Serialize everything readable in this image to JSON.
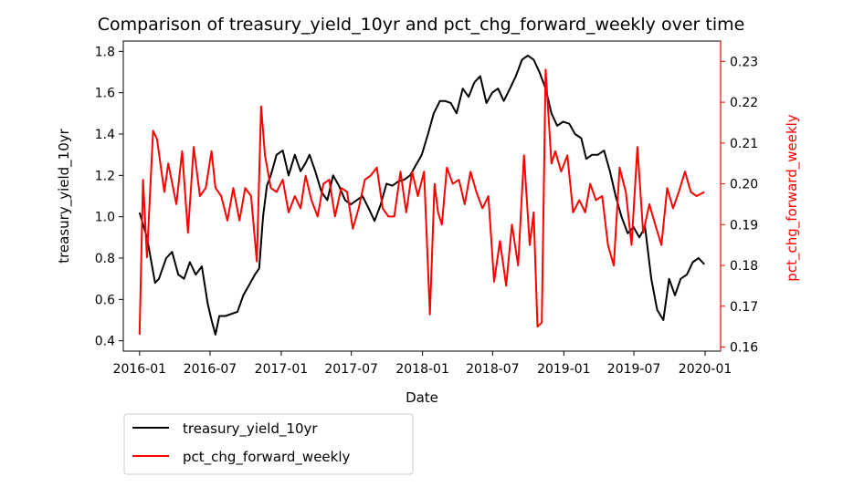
{
  "chart_data": {
    "type": "line",
    "title": "Comparison of treasury_yield_10yr and pct_chg_forward_weekly over time",
    "xlabel": "Date",
    "ylabel_left": "treasury_yield_10yr",
    "ylabel_right": "pct_chg_forward_weekly",
    "x_ticks": [
      "2016-01",
      "2016-07",
      "2017-01",
      "2017-07",
      "2018-01",
      "2018-07",
      "2019-01",
      "2019-07",
      "2020-01"
    ],
    "y_left_ticks": [
      "0.4",
      "0.6",
      "0.8",
      "1.0",
      "1.2",
      "1.4",
      "1.6",
      "1.8"
    ],
    "y_right_ticks": [
      "0.16",
      "0.17",
      "0.18",
      "0.19",
      "0.20",
      "0.21",
      "0.22",
      "0.23"
    ],
    "xlim": [
      "2015-11-20",
      "2020-02-10"
    ],
    "ylim_left": [
      0.35,
      1.85
    ],
    "ylim_right": [
      0.159,
      0.235
    ],
    "grid": false,
    "legend_position": "below-left",
    "series": [
      {
        "name": "treasury_yield_10yr",
        "axis": "left",
        "color": "#000000",
        "x": [
          "2016-01-01",
          "2016-01-20",
          "2016-02-10",
          "2016-02-20",
          "2016-03-10",
          "2016-03-25",
          "2016-04-10",
          "2016-04-25",
          "2016-05-10",
          "2016-05-25",
          "2016-06-10",
          "2016-06-25",
          "2016-07-05",
          "2016-07-15",
          "2016-07-25",
          "2016-08-10",
          "2016-08-25",
          "2016-09-10",
          "2016-09-25",
          "2016-10-10",
          "2016-10-25",
          "2016-11-05",
          "2016-11-15",
          "2016-11-25",
          "2016-12-05",
          "2016-12-20",
          "2017-01-05",
          "2017-01-20",
          "2017-02-05",
          "2017-02-20",
          "2017-03-05",
          "2017-03-15",
          "2017-03-30",
          "2017-04-15",
          "2017-04-30",
          "2017-05-15",
          "2017-05-30",
          "2017-06-15",
          "2017-06-30",
          "2017-07-15",
          "2017-07-30",
          "2017-08-15",
          "2017-08-30",
          "2017-09-15",
          "2017-09-30",
          "2017-10-15",
          "2017-10-30",
          "2017-11-15",
          "2017-11-30",
          "2017-12-15",
          "2017-12-30",
          "2018-01-15",
          "2018-01-30",
          "2018-02-15",
          "2018-02-28",
          "2018-03-15",
          "2018-03-30",
          "2018-04-15",
          "2018-04-30",
          "2018-05-15",
          "2018-05-30",
          "2018-06-15",
          "2018-06-30",
          "2018-07-15",
          "2018-07-30",
          "2018-08-15",
          "2018-08-30",
          "2018-09-15",
          "2018-09-30",
          "2018-10-15",
          "2018-10-30",
          "2018-11-15",
          "2018-11-30",
          "2018-12-15",
          "2018-12-30",
          "2019-01-15",
          "2019-01-30",
          "2019-02-15",
          "2019-02-28",
          "2019-03-15",
          "2019-03-30",
          "2019-04-15",
          "2019-04-30",
          "2019-05-15",
          "2019-05-30",
          "2019-06-15",
          "2019-06-30",
          "2019-07-15",
          "2019-07-30",
          "2019-08-15",
          "2019-08-30",
          "2019-09-15",
          "2019-09-30",
          "2019-10-15",
          "2019-10-30",
          "2019-11-15",
          "2019-11-30",
          "2019-12-15",
          "2019-12-30"
        ],
        "values": [
          1.02,
          0.9,
          0.68,
          0.7,
          0.8,
          0.83,
          0.72,
          0.7,
          0.78,
          0.72,
          0.76,
          0.58,
          0.5,
          0.43,
          0.52,
          0.52,
          0.53,
          0.54,
          0.62,
          0.67,
          0.72,
          0.75,
          1.0,
          1.15,
          1.2,
          1.3,
          1.32,
          1.2,
          1.3,
          1.22,
          1.26,
          1.3,
          1.22,
          1.12,
          1.08,
          1.2,
          1.15,
          1.08,
          1.06,
          1.08,
          1.1,
          1.04,
          0.98,
          1.06,
          1.16,
          1.15,
          1.17,
          1.18,
          1.2,
          1.25,
          1.3,
          1.4,
          1.5,
          1.56,
          1.56,
          1.55,
          1.5,
          1.62,
          1.58,
          1.65,
          1.68,
          1.55,
          1.6,
          1.62,
          1.56,
          1.62,
          1.68,
          1.76,
          1.78,
          1.76,
          1.7,
          1.62,
          1.5,
          1.44,
          1.46,
          1.45,
          1.4,
          1.38,
          1.28,
          1.3,
          1.3,
          1.32,
          1.22,
          1.1,
          1.0,
          0.92,
          0.95,
          0.9,
          0.95,
          0.7,
          0.55,
          0.5,
          0.7,
          0.62,
          0.7,
          0.72,
          0.78,
          0.8,
          0.77
        ]
      },
      {
        "name": "pct_chg_forward_weekly",
        "axis": "right",
        "color": "#ff0000",
        "x": [
          "2016-01-01",
          "2016-01-10",
          "2016-01-20",
          "2016-02-05",
          "2016-02-15",
          "2016-03-05",
          "2016-03-15",
          "2016-04-05",
          "2016-04-20",
          "2016-05-05",
          "2016-05-20",
          "2016-06-05",
          "2016-06-20",
          "2016-07-05",
          "2016-07-15",
          "2016-07-30",
          "2016-08-15",
          "2016-08-30",
          "2016-09-15",
          "2016-09-30",
          "2016-10-15",
          "2016-10-30",
          "2016-11-10",
          "2016-11-20",
          "2016-12-05",
          "2016-12-20",
          "2017-01-05",
          "2017-01-20",
          "2017-02-05",
          "2017-02-20",
          "2017-03-05",
          "2017-03-20",
          "2017-04-05",
          "2017-04-20",
          "2017-05-05",
          "2017-05-20",
          "2017-06-05",
          "2017-06-20",
          "2017-07-05",
          "2017-07-20",
          "2017-08-05",
          "2017-08-20",
          "2017-09-05",
          "2017-09-20",
          "2017-10-05",
          "2017-10-20",
          "2017-11-05",
          "2017-11-20",
          "2017-12-05",
          "2017-12-20",
          "2018-01-05",
          "2018-01-20",
          "2018-02-01",
          "2018-02-10",
          "2018-02-20",
          "2018-03-05",
          "2018-03-20",
          "2018-04-05",
          "2018-04-20",
          "2018-05-05",
          "2018-05-20",
          "2018-06-05",
          "2018-06-20",
          "2018-07-05",
          "2018-07-20",
          "2018-08-05",
          "2018-08-20",
          "2018-09-05",
          "2018-09-20",
          "2018-10-05",
          "2018-10-15",
          "2018-10-25",
          "2018-11-05",
          "2018-11-15",
          "2018-11-30",
          "2018-12-10",
          "2018-12-25",
          "2019-01-10",
          "2019-01-25",
          "2019-02-10",
          "2019-02-25",
          "2019-03-10",
          "2019-03-25",
          "2019-04-10",
          "2019-04-25",
          "2019-05-10",
          "2019-05-25",
          "2019-06-10",
          "2019-06-25",
          "2019-07-10",
          "2019-07-25",
          "2019-08-10",
          "2019-08-25",
          "2019-09-10",
          "2019-09-25",
          "2019-10-10",
          "2019-10-25",
          "2019-11-10",
          "2019-11-25",
          "2019-12-10",
          "2019-12-30"
        ],
        "values": [
          0.163,
          0.201,
          0.182,
          0.213,
          0.211,
          0.198,
          0.205,
          0.195,
          0.208,
          0.188,
          0.209,
          0.197,
          0.199,
          0.208,
          0.199,
          0.197,
          0.191,
          0.199,
          0.191,
          0.199,
          0.197,
          0.181,
          0.219,
          0.207,
          0.199,
          0.198,
          0.201,
          0.193,
          0.197,
          0.194,
          0.202,
          0.196,
          0.192,
          0.2,
          0.201,
          0.192,
          0.199,
          0.198,
          0.189,
          0.194,
          0.201,
          0.202,
          0.204,
          0.194,
          0.192,
          0.192,
          0.203,
          0.193,
          0.203,
          0.197,
          0.203,
          0.168,
          0.2,
          0.193,
          0.19,
          0.204,
          0.2,
          0.201,
          0.195,
          0.203,
          0.198,
          0.194,
          0.197,
          0.176,
          0.186,
          0.175,
          0.19,
          0.18,
          0.207,
          0.185,
          0.193,
          0.165,
          0.166,
          0.228,
          0.205,
          0.208,
          0.203,
          0.207,
          0.193,
          0.196,
          0.193,
          0.2,
          0.196,
          0.197,
          0.185,
          0.18,
          0.204,
          0.198,
          0.185,
          0.209,
          0.188,
          0.195,
          0.19,
          0.185,
          0.199,
          0.194,
          0.198,
          0.203,
          0.198,
          0.197,
          0.198
        ]
      }
    ]
  }
}
